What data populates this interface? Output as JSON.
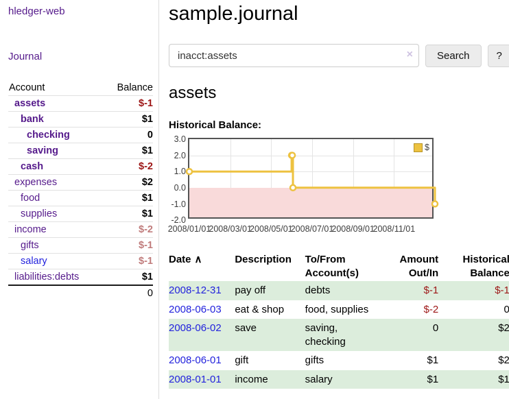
{
  "colors": {
    "link_purple": "#551a8b",
    "link_blue": "#2222dd",
    "negative": "#9d1616",
    "negative_muted": "#c07c7c",
    "row_stripe_green": "#dceddc",
    "series_yellow": "#edc240",
    "chart_negative_region": "#f9dada",
    "chart_zero_line": "#8b1a1a"
  },
  "sidebar": {
    "app_title": "hledger-web",
    "nav": {
      "journal_label": "Journal"
    },
    "accounts": {
      "header": {
        "account": "Account",
        "balance": "Balance"
      },
      "rows": [
        {
          "name": "assets",
          "level": 1,
          "bold": true,
          "balance": "$-1",
          "balance_class": "neg"
        },
        {
          "name": "bank",
          "level": 2,
          "bold": true,
          "balance": "$1",
          "balance_class": ""
        },
        {
          "name": "checking",
          "level": 3,
          "bold": true,
          "balance": "0",
          "balance_class": ""
        },
        {
          "name": "saving",
          "level": 3,
          "bold": true,
          "balance": "$1",
          "balance_class": ""
        },
        {
          "name": "cash",
          "level": 2,
          "bold": true,
          "balance": "$-2",
          "balance_class": "neg"
        },
        {
          "name": "expenses",
          "level": 1,
          "bold": false,
          "balance": "$2",
          "balance_class": ""
        },
        {
          "name": "food",
          "level": 2,
          "bold": false,
          "balance": "$1",
          "balance_class": ""
        },
        {
          "name": "supplies",
          "level": 2,
          "bold": false,
          "balance": "$1",
          "balance_class": ""
        },
        {
          "name": "income",
          "level": 1,
          "bold": false,
          "balance": "$-2",
          "balance_class": "neg-muted"
        },
        {
          "name": "gifts",
          "level": 2,
          "bold": false,
          "balance": "$-1",
          "balance_class": "neg-muted"
        },
        {
          "name": "salary",
          "level": 2,
          "bold": false,
          "balance": "$-1",
          "balance_class": "neg-muted",
          "link_blue": true
        },
        {
          "name": "liabilities:debts",
          "level": 1,
          "bold": false,
          "balance": "$1",
          "balance_class": ""
        }
      ],
      "total": "0"
    }
  },
  "main": {
    "title": "sample.journal",
    "search": {
      "value": "inacct:assets",
      "clear_icon": "×",
      "button_label": "Search",
      "help_label": "?"
    },
    "account_heading": "assets",
    "chart_label": "Historical Balance:"
  },
  "chart_data": {
    "type": "line",
    "title": "Historical Balance",
    "step": true,
    "series": [
      {
        "name": "$",
        "color": "#edc240",
        "points": [
          {
            "date": "2008-01-01",
            "value": 1
          },
          {
            "date": "2008-06-01",
            "value": 2
          },
          {
            "date": "2008-06-02",
            "value": 2
          },
          {
            "date": "2008-06-03",
            "value": 0
          },
          {
            "date": "2008-12-31",
            "value": -1
          }
        ]
      }
    ],
    "ylim": [
      -2,
      3
    ],
    "yticks": [
      {
        "value": 3,
        "label": "3.0"
      },
      {
        "value": 2,
        "label": "2.0"
      },
      {
        "value": 1,
        "label": "1.0"
      },
      {
        "value": 0,
        "label": "0.0"
      },
      {
        "value": -1,
        "label": "-1.0"
      },
      {
        "value": -2,
        "label": "-2.0"
      }
    ],
    "xticks": [
      {
        "month_index": 0,
        "label": "2008/01/01"
      },
      {
        "month_index": 2,
        "label": "2008/03/01"
      },
      {
        "month_index": 4,
        "label": "2008/05/01"
      },
      {
        "month_index": 6,
        "label": "2008/07/01"
      },
      {
        "month_index": 8,
        "label": "2008/09/01"
      },
      {
        "month_index": 10,
        "label": "2008/11/01"
      }
    ],
    "x_range": [
      "2008-01-01",
      "2008-12-31"
    ],
    "grid": true,
    "legend": {
      "label": "$",
      "position": "top-right"
    }
  },
  "register": {
    "sort": {
      "column": "Date",
      "direction_icon": "∧"
    },
    "headers": [
      {
        "l1": "Date",
        "l2": ""
      },
      {
        "l1": "Description",
        "l2": ""
      },
      {
        "l1": "To/From",
        "l2": "Account(s)"
      },
      {
        "l1": "Amount",
        "l2": "Out/In"
      },
      {
        "l1": "Historical",
        "l2": "Balance"
      }
    ],
    "rows": [
      {
        "date": "2008-12-31",
        "description": "pay off",
        "accounts": "debts",
        "amount": "$-1",
        "amount_negative": true,
        "balance": "$-1",
        "balance_negative": true
      },
      {
        "date": "2008-06-03",
        "description": "eat & shop",
        "accounts": "food, supplies",
        "amount": "$-2",
        "amount_negative": true,
        "balance": "0",
        "balance_negative": false
      },
      {
        "date": "2008-06-02",
        "description": "save",
        "accounts": "saving, checking",
        "amount": "0",
        "amount_negative": false,
        "balance": "$2",
        "balance_negative": false
      },
      {
        "date": "2008-06-01",
        "description": "gift",
        "accounts": "gifts",
        "amount": "$1",
        "amount_negative": false,
        "balance": "$2",
        "balance_negative": false
      },
      {
        "date": "2008-01-01",
        "description": "income",
        "accounts": "salary",
        "amount": "$1",
        "amount_negative": false,
        "balance": "$1",
        "balance_negative": false
      }
    ]
  }
}
